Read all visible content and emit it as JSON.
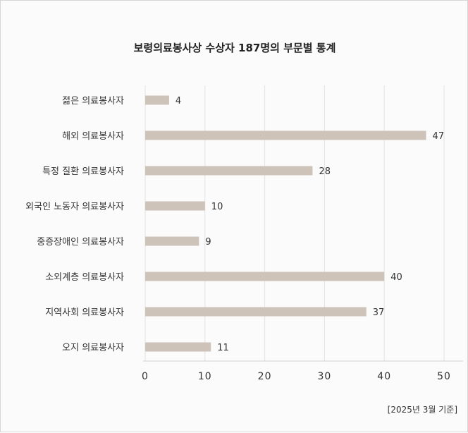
{
  "chart_data": {
    "type": "bar",
    "orientation": "horizontal",
    "title": "보령의료봉사상 수상자 187명의 부문별 통계",
    "categories": [
      "젊은 의료봉사자",
      "해외 의료봉사자",
      "특정 질환 의료봉사자",
      "외국인 노동자 의료봉사자",
      "중증장애인 의료봉사자",
      "소외계층 의료봉사자",
      "지역사회 의료봉사자",
      "오지 의료봉사자"
    ],
    "values": [
      4,
      47,
      28,
      10,
      9,
      40,
      37,
      11
    ],
    "xlim": [
      0,
      50
    ],
    "xticks": [
      0,
      10,
      20,
      30,
      40,
      50
    ],
    "grid": "vertical",
    "bar_color": "#cdc3b9",
    "xlabel": "",
    "ylabel": ""
  },
  "footnote": "[2025년 3월 기준]"
}
